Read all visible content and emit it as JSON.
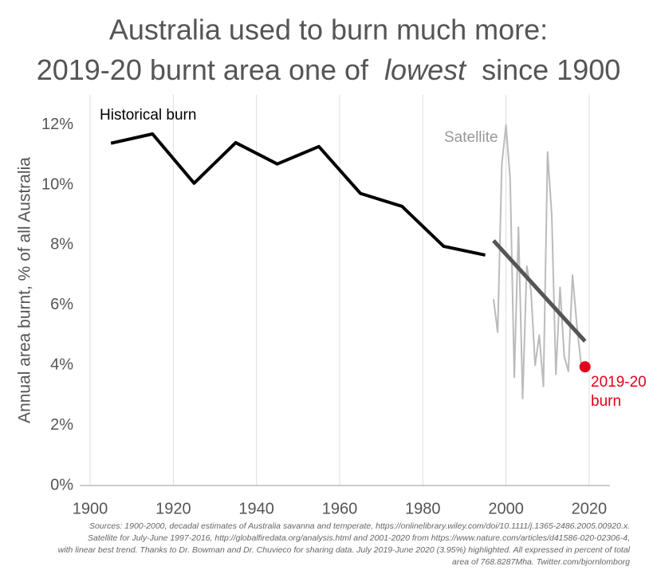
{
  "chart_data": {
    "type": "line",
    "title_line1": "Australia used to burn much more:",
    "title_line2": [
      "2019-20 burnt area one of",
      "lowest",
      "since 1900"
    ],
    "y_label": "Annual area burnt, % of all Australia",
    "xlim": [
      1897.5,
      2025
    ],
    "xticks": [
      1900,
      1920,
      1940,
      1960,
      1980,
      2000,
      2020
    ],
    "ylim": [
      0,
      13
    ],
    "yticks": [
      {
        "value": 0,
        "label": "0%"
      },
      {
        "value": 2,
        "label": "2%"
      },
      {
        "value": 4,
        "label": "4%"
      },
      {
        "value": 6,
        "label": "6%"
      },
      {
        "value": 8,
        "label": "8%"
      },
      {
        "value": 10,
        "label": "10%"
      },
      {
        "value": 12,
        "label": "12%"
      }
    ],
    "grid": "x",
    "series": [
      {
        "name": "Historical burn",
        "color": "#000000",
        "x": [
          1905,
          1915,
          1925,
          1935,
          1945,
          1955,
          1965,
          1975,
          1985,
          1995
        ],
        "values": [
          11.39,
          11.7,
          10.06,
          11.41,
          10.7,
          11.28,
          9.72,
          9.29,
          7.96,
          7.67
        ]
      },
      {
        "name": "Satellite",
        "color": "#bbbbbb",
        "x": [
          1997,
          1998,
          1999,
          2000,
          2001,
          2002,
          2003,
          2004,
          2005,
          2006,
          2007,
          2008,
          2009,
          2010,
          2011,
          2012,
          2013,
          2014,
          2015,
          2016,
          2017,
          2018,
          2019
        ],
        "values": [
          6.2,
          5.1,
          10.7,
          12.0,
          10.2,
          3.6,
          8.6,
          2.9,
          7.3,
          6.5,
          4.0,
          5.0,
          3.3,
          11.1,
          9.0,
          3.7,
          6.6,
          4.3,
          3.8,
          7.0,
          5.4,
          4.1,
          3.95
        ]
      },
      {
        "color": "#555555",
        "x": [
          1997,
          2019
        ],
        "values": [
          8.15,
          4.8
        ]
      }
    ],
    "highlight": {
      "x": 2019,
      "value": 3.95,
      "color": "#e0001b",
      "label": [
        "2019-20",
        "burn"
      ]
    },
    "sources": [
      "Sources: 1900-2000, decadal estimates of Australia savanna and temperate, https://onlinelibrary.wiley.com/doi/10.1111/j.1365-2486.2005.00920.x.",
      "Satellite for July-June 1997-2016, http://globalfiredata.org/analysis.html and 2001-2020 from https://www.nature.com/articles/d41586-020-02306-4,",
      "with linear best trend. Thanks to Dr. Bowman and Dr. Chuvieco for sharing data. July 2019-June 2020 (3.95%) highlighted. All expressed in percent of total",
      "area of 768.8287Mha. Twitter.com/bjornlomborg"
    ]
  }
}
